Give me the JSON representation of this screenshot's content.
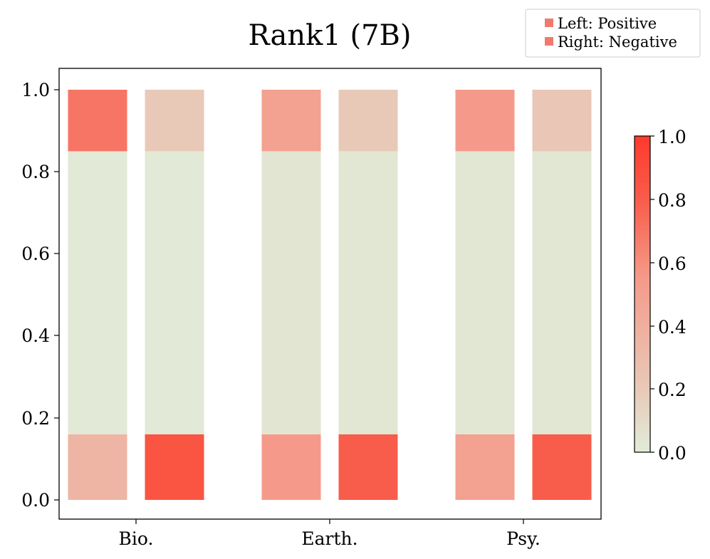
{
  "chart_data": {
    "type": "heatmap",
    "title": "Rank1 (7B)",
    "xlabel": "",
    "ylabel": "",
    "categories": [
      "Bio.",
      "Earth.",
      "Psy."
    ],
    "ylim": [
      -0.05,
      1.05
    ],
    "yticks": [
      "0.0",
      "0.2",
      "0.4",
      "0.6",
      "0.8",
      "1.0"
    ],
    "legend": {
      "position": "top-right",
      "entries": [
        "Left: Positive",
        "Right: Negative"
      ]
    },
    "colorbar": {
      "range": [
        0.0,
        1.0
      ],
      "ticks": [
        "0.0",
        "0.2",
        "0.4",
        "0.6",
        "0.8",
        "1.0"
      ],
      "colors": [
        "#e1ecd9",
        "#e8c9b8",
        "#f59a8a",
        "#f85c4a",
        "#ff3a2c"
      ]
    },
    "series": [
      {
        "name": "Left: Positive",
        "bars": [
          {
            "category": "Bio.",
            "segments": [
              {
                "from": 0.0,
                "to": 0.16,
                "value": 0.35
              },
              {
                "from": 0.16,
                "to": 0.85,
                "value": 0.02
              },
              {
                "from": 0.85,
                "to": 1.0,
                "value": 0.7
              }
            ]
          },
          {
            "category": "Earth.",
            "segments": [
              {
                "from": 0.0,
                "to": 0.16,
                "value": 0.55
              },
              {
                "from": 0.16,
                "to": 0.85,
                "value": 0.04
              },
              {
                "from": 0.85,
                "to": 1.0,
                "value": 0.5
              }
            ]
          },
          {
            "category": "Psy.",
            "segments": [
              {
                "from": 0.0,
                "to": 0.16,
                "value": 0.5
              },
              {
                "from": 0.16,
                "to": 0.85,
                "value": 0.03
              },
              {
                "from": 0.85,
                "to": 1.0,
                "value": 0.55
              }
            ]
          }
        ]
      },
      {
        "name": "Right: Negative",
        "bars": [
          {
            "category": "Bio.",
            "segments": [
              {
                "from": 0.0,
                "to": 0.16,
                "value": 0.85
              },
              {
                "from": 0.16,
                "to": 0.85,
                "value": 0.02
              },
              {
                "from": 0.85,
                "to": 1.0,
                "value": 0.2
              }
            ]
          },
          {
            "category": "Earth.",
            "segments": [
              {
                "from": 0.0,
                "to": 0.16,
                "value": 0.8
              },
              {
                "from": 0.16,
                "to": 0.85,
                "value": 0.03
              },
              {
                "from": 0.85,
                "to": 1.0,
                "value": 0.2
              }
            ]
          },
          {
            "category": "Psy.",
            "segments": [
              {
                "from": 0.0,
                "to": 0.16,
                "value": 0.8
              },
              {
                "from": 0.16,
                "to": 0.85,
                "value": 0.03
              },
              {
                "from": 0.85,
                "to": 1.0,
                "value": 0.22
              }
            ]
          }
        ]
      }
    ],
    "legend_marker_color": "#f07a6e",
    "grid": false
  }
}
